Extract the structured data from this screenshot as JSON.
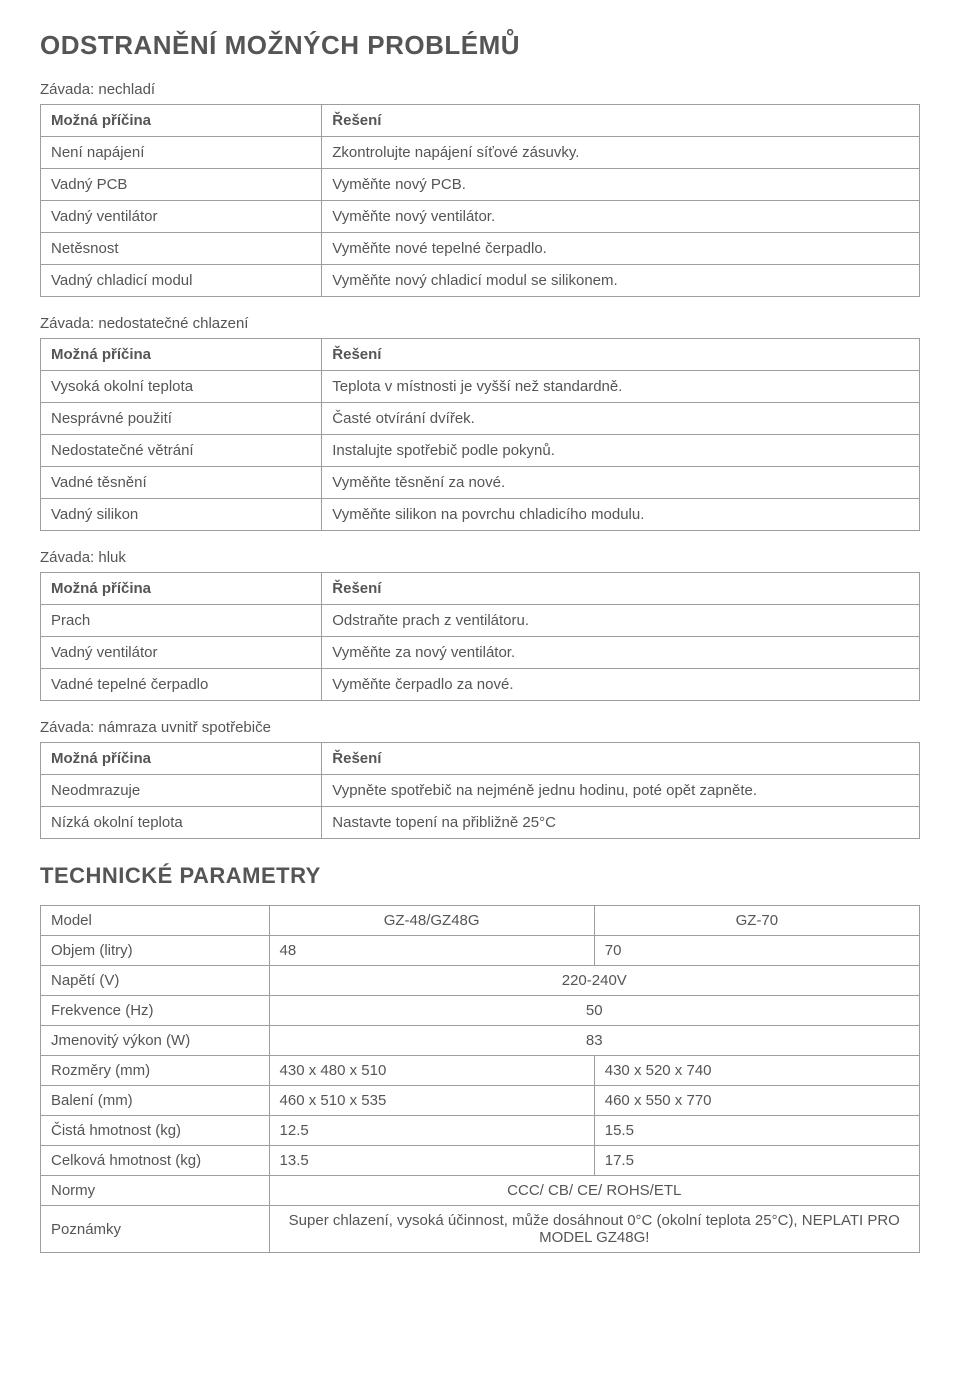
{
  "headings": {
    "troubleshooting": "ODSTRANĚNÍ MOŽNÝCH PROBLÉMŮ",
    "technical_params": "TECHNICKÉ PARAMETRY"
  },
  "labels": {
    "cause": "Možná příčina",
    "solution": "Řešení"
  },
  "faults": [
    {
      "title": "Závada: nechladí",
      "rows": [
        {
          "cause": "Není napájení",
          "solution": "Zkontrolujte napájení síťové zásuvky."
        },
        {
          "cause": "Vadný PCB",
          "solution": "Vyměňte nový PCB."
        },
        {
          "cause": "Vadný ventilátor",
          "solution": "Vyměňte nový ventilátor."
        },
        {
          "cause": "Netěsnost",
          "solution": "Vyměňte nové tepelné čerpadlo."
        },
        {
          "cause": "Vadný chladicí modul",
          "solution": "Vyměňte nový chladicí modul se silikonem."
        }
      ]
    },
    {
      "title": "Závada: nedostatečné chlazení",
      "rows": [
        {
          "cause": "Vysoká okolní teplota",
          "solution": "Teplota v místnosti je vyšší než standardně."
        },
        {
          "cause": "Nesprávné použití",
          "solution": "Časté otvírání dvířek."
        },
        {
          "cause": "Nedostatečné větrání",
          "solution": "Instalujte spotřebič podle pokynů."
        },
        {
          "cause": "Vadné těsnění",
          "solution": "Vyměňte těsnění za nové."
        },
        {
          "cause": "Vadný silikon",
          "solution": "Vyměňte silikon na povrchu chladicího modulu."
        }
      ]
    },
    {
      "title": "Závada: hluk",
      "rows": [
        {
          "cause": "Prach",
          "solution": "Odstraňte prach z ventilátoru."
        },
        {
          "cause": "Vadný ventilátor",
          "solution": "Vyměňte za nový ventilátor."
        },
        {
          "cause": "Vadné tepelné čerpadlo",
          "solution": "Vyměňte čerpadlo za nové."
        }
      ]
    },
    {
      "title": "Závada: námraza uvnitř spotřebiče",
      "rows": [
        {
          "cause": "Neodmrazuje",
          "solution": "Vypněte spotřebič na nejméně jednu hodinu, poté opět zapněte."
        },
        {
          "cause": "Nízká okolní teplota",
          "solution": "Nastavte topení na přibližně 25°C"
        }
      ]
    }
  ],
  "specs": {
    "columns": [
      "Model",
      "GZ-48/GZ48G",
      "GZ-70"
    ],
    "rows": [
      {
        "label": "Objem (litry)",
        "v1": "48",
        "v2": "70",
        "span": false
      },
      {
        "label": "Napětí (V)",
        "v1": "220-240V",
        "span": true
      },
      {
        "label": "Frekvence (Hz)",
        "v1": "50",
        "span": true
      },
      {
        "label": "Jmenovitý výkon (W)",
        "v1": "83",
        "span": true
      },
      {
        "label": "Rozměry (mm)",
        "v1": "430 x 480 x 510",
        "v2": "430 x 520 x 740",
        "span": false
      },
      {
        "label": "Balení (mm)",
        "v1": "460 x 510 x 535",
        "v2": "460 x 550 x 770",
        "span": false
      },
      {
        "label": "Čistá hmotnost (kg)",
        "v1": "12.5",
        "v2": "15.5",
        "span": false
      },
      {
        "label": "Celková hmotnost (kg)",
        "v1": "13.5",
        "v2": "17.5",
        "span": false
      },
      {
        "label": "Normy",
        "v1": "CCC/ CB/ CE/ ROHS/ETL",
        "span": true
      },
      {
        "label": "Poznámky",
        "v1": "Super chlazení, vysoká účinnost, může dosáhnout 0°C (okolní teplota 25°C), NEPLATI PRO MODEL GZ48G!",
        "span": true
      }
    ]
  },
  "styles": {
    "text_color": "#555555",
    "border_color": "#9e9e9e",
    "background_color": "#ffffff",
    "heading_fontsize": 26,
    "body_fontsize": 15
  }
}
